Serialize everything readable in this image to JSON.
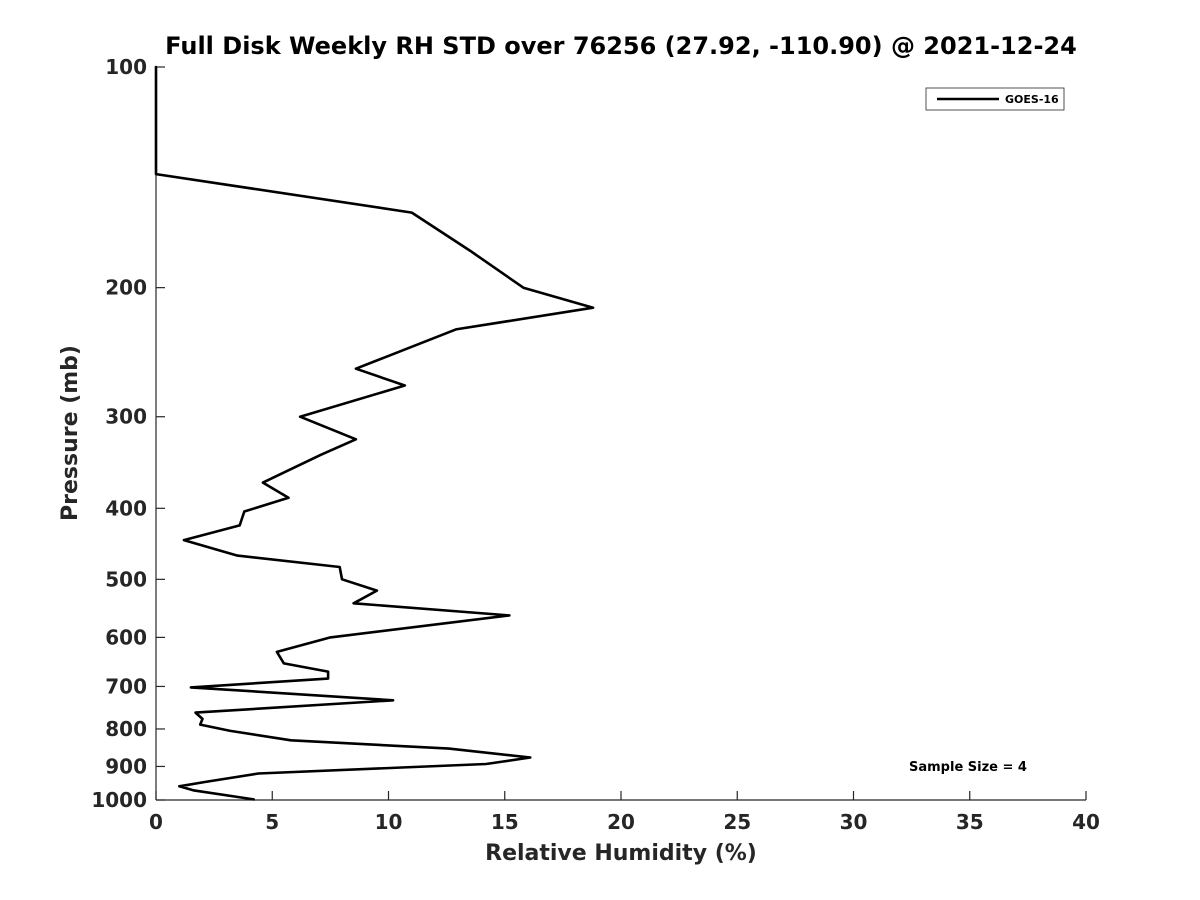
{
  "chart_data": {
    "type": "line",
    "title": "Full Disk Weekly RH STD over 76256 (27.92, -110.90) @ 2021-12-24",
    "xlabel": "Relative Humidity (%)",
    "ylabel": "Pressure (mb)",
    "xlim": [
      0,
      40
    ],
    "ylim": [
      100,
      1000
    ],
    "y_scale": "log",
    "y_reversed": true,
    "x_ticks": [
      0,
      5,
      10,
      15,
      20,
      25,
      30,
      35,
      40
    ],
    "y_ticks": [
      100,
      200,
      300,
      400,
      500,
      600,
      700,
      800,
      900,
      1000
    ],
    "grid": false,
    "legend_position": "top-right",
    "series": [
      {
        "name": "GOES-16",
        "color": "#000000",
        "points": [
          [
            0.0,
            100
          ],
          [
            0.0,
            115
          ],
          [
            0.0,
            125
          ],
          [
            0.0,
            135
          ],
          [
            0.0,
            140
          ],
          [
            11.0,
            158
          ],
          [
            13.5,
            178
          ],
          [
            15.8,
            200
          ],
          [
            18.8,
            213
          ],
          [
            12.9,
            228
          ],
          [
            8.6,
            258
          ],
          [
            10.7,
            272
          ],
          [
            6.2,
            300
          ],
          [
            8.6,
            322
          ],
          [
            7.1,
            338
          ],
          [
            4.6,
            369
          ],
          [
            5.7,
            387
          ],
          [
            3.8,
            404
          ],
          [
            3.6,
            422
          ],
          [
            1.2,
            442
          ],
          [
            3.5,
            464
          ],
          [
            7.9,
            481
          ],
          [
            8.0,
            500
          ],
          [
            9.5,
            518
          ],
          [
            8.5,
            539
          ],
          [
            15.2,
            560
          ],
          [
            7.5,
            600
          ],
          [
            5.2,
            628
          ],
          [
            5.5,
            651
          ],
          [
            7.4,
            668
          ],
          [
            7.4,
            683
          ],
          [
            1.5,
            702
          ],
          [
            10.2,
            731
          ],
          [
            1.7,
            760
          ],
          [
            2.0,
            775
          ],
          [
            1.9,
            789
          ],
          [
            3.2,
            805
          ],
          [
            5.8,
            829
          ],
          [
            12.6,
            851
          ],
          [
            16.1,
            875
          ],
          [
            14.2,
            893
          ],
          [
            4.4,
            920
          ],
          [
            2.1,
            945
          ],
          [
            1.0,
            958
          ],
          [
            1.6,
            970
          ],
          [
            4.2,
            998
          ]
        ]
      }
    ],
    "annotations": [
      "Sample Size = 4"
    ]
  }
}
